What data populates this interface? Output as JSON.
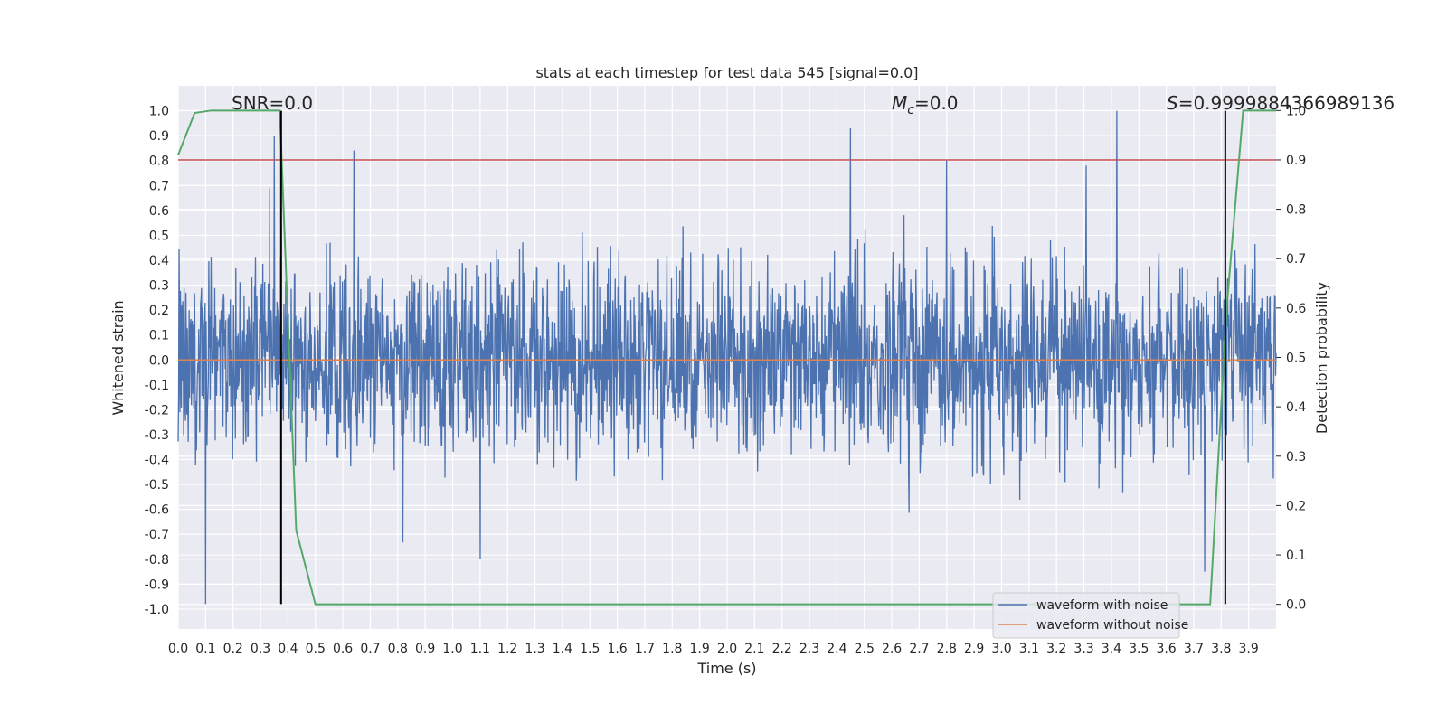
{
  "chart_data": {
    "type": "line",
    "title": "stats at each timestep for test data 545 [signal=0.0]",
    "xlabel": "Time (s)",
    "ylabel": "Whitened strain",
    "y2label": "Detection probability",
    "xlim": [
      0.0,
      4.0
    ],
    "ylim": [
      -1.08,
      1.1
    ],
    "y2lim": [
      -0.05,
      1.05
    ],
    "x_ticks": [
      "0.0",
      "0.1",
      "0.2",
      "0.3",
      "0.4",
      "0.5",
      "0.6",
      "0.7",
      "0.8",
      "0.9",
      "1.0",
      "1.1",
      "1.2",
      "1.3",
      "1.4",
      "1.5",
      "1.6",
      "1.7",
      "1.8",
      "1.9",
      "2.0",
      "2.1",
      "2.2",
      "2.3",
      "2.4",
      "2.5",
      "2.6",
      "2.7",
      "2.8",
      "2.9",
      "3.0",
      "3.1",
      "3.2",
      "3.3",
      "3.4",
      "3.5",
      "3.6",
      "3.7",
      "3.8",
      "3.9"
    ],
    "y_ticks": [
      "1.0",
      "0.9",
      "0.8",
      "0.7",
      "0.6",
      "0.5",
      "0.4",
      "0.3",
      "0.2",
      "0.1",
      "0.0",
      "-0.1",
      "-0.2",
      "-0.3",
      "-0.4",
      "-0.5",
      "-0.6",
      "-0.7",
      "-0.8",
      "-0.9",
      "-1.0"
    ],
    "y2_ticks": [
      "1.0",
      "0.9",
      "0.8",
      "0.7",
      "0.6",
      "0.5",
      "0.4",
      "0.3",
      "0.2",
      "0.1",
      "0.0"
    ],
    "grid": true,
    "legend_position": "lower-right",
    "annotations": {
      "snr_label": "SNR=0.0",
      "mc_symbol": "M",
      "mc_sub": "c",
      "mc_value": "=0.0",
      "s_symbol": "S",
      "s_value": "=0.9999884366989136"
    },
    "series": [
      {
        "name": "waveform with noise",
        "color": "#4c72b0",
        "kind": "noise",
        "amplitude_typical": 0.35,
        "peaks": [
          [
            0.1,
            -0.98
          ],
          [
            0.35,
            0.9
          ],
          [
            0.64,
            0.84
          ],
          [
            1.1,
            -0.8
          ],
          [
            2.45,
            0.93
          ],
          [
            2.8,
            0.8
          ],
          [
            3.42,
            1.0
          ],
          [
            3.74,
            -0.85
          ],
          [
            3.85,
            0.44
          ]
        ]
      },
      {
        "name": "waveform without noise",
        "color": "#dd8452",
        "values_constant": 0.0
      }
    ],
    "detection_probability": {
      "color": "#55a868",
      "x": [
        0.0,
        0.06,
        0.12,
        0.2,
        0.37,
        0.43,
        0.5,
        1.0,
        2.0,
        3.0,
        3.76,
        3.82,
        3.88,
        4.0
      ],
      "y": [
        0.91,
        0.995,
        1.0,
        1.0,
        1.0,
        0.15,
        0.0,
        0.0,
        0.0,
        0.0,
        0.0,
        0.6,
        1.0,
        1.0
      ]
    },
    "threshold": {
      "y2": 0.9,
      "color": "#c44e52"
    },
    "vlines": {
      "x": [
        0.375,
        3.815
      ],
      "color": "#000000",
      "ymin": -0.98,
      "ymax": 1.0
    }
  }
}
